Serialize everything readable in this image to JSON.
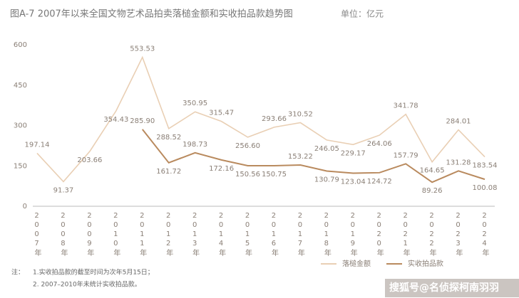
{
  "chart_data": {
    "type": "line",
    "title": "图A-7 2007年以来全国文物艺术品拍卖落槌金额和实收拍品款趋势图",
    "subtitle": "单位：亿元",
    "categories": [
      "2007年",
      "2008年",
      "2009年",
      "2010年",
      "2011年",
      "2012年",
      "2013年",
      "2014年",
      "2015年",
      "2016年",
      "2017年",
      "2018年",
      "2019年",
      "2020年",
      "2021年",
      "2022年",
      "2023年",
      "2024年"
    ],
    "series": [
      {
        "name": "落槌金额",
        "color": "#e9cfb4",
        "values": [
          197.14,
          91.37,
          203.66,
          354.43,
          553.53,
          288.52,
          350.95,
          315.47,
          256.6,
          293.66,
          310.52,
          246.05,
          229.17,
          264.06,
          341.78,
          164.65,
          284.01,
          183.54
        ],
        "value_labels": [
          "197.14",
          "91.37",
          "203.66",
          "354.43",
          "553.53",
          "288.52",
          "350.95",
          "315.47",
          "256.60",
          "293.66",
          "310.52",
          "246.05",
          "229.17",
          "264.06",
          "341.78",
          "164.65",
          "284.01",
          "183.54"
        ]
      },
      {
        "name": "实收拍品款",
        "color": "#b98a5e",
        "values": [
          null,
          null,
          null,
          null,
          285.9,
          161.72,
          198.73,
          172.16,
          150.56,
          150.75,
          153.22,
          130.79,
          123.04,
          124.72,
          157.79,
          89.26,
          131.28,
          100.08
        ],
        "value_labels": [
          null,
          null,
          null,
          null,
          "285.90",
          "161.72",
          "198.73",
          "172.16",
          "150.56",
          "150.75",
          "153.22",
          "130.79",
          "123.04",
          "124.72",
          "157.79",
          "89.26",
          "131.28",
          "100.08"
        ]
      }
    ],
    "ylim": [
      0,
      600
    ],
    "yticks": [
      0,
      150,
      300,
      450,
      600
    ],
    "grid": false,
    "notes": [
      "注：",
      "1.实收拍品款的截至时间为次年5月15日；",
      "2. 2007–2010年未统计实收拍品款。"
    ],
    "watermark": "搜狐号@名侦探柯南羽羽"
  }
}
